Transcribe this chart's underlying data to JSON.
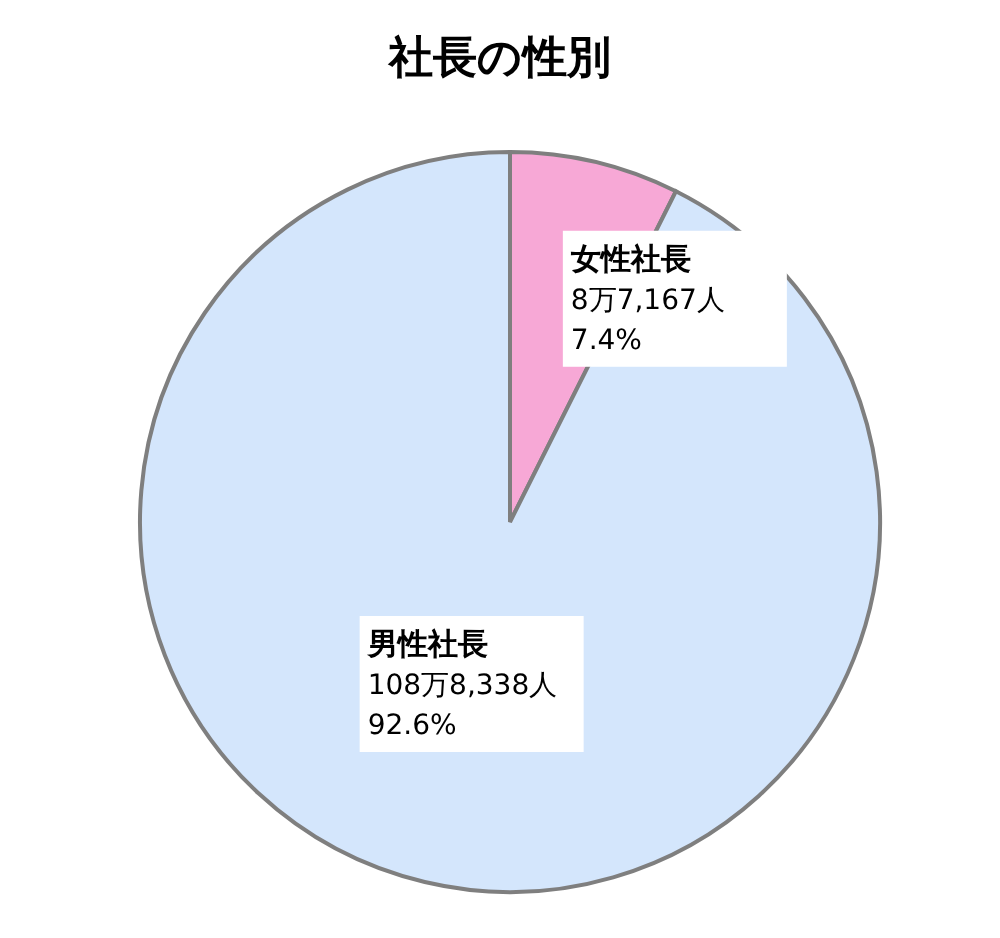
{
  "chart_data": {
    "type": "pie",
    "title": "社長の性別",
    "categories": [
      "女性社長",
      "男性社長"
    ],
    "values": [
      7.4,
      92.6
    ],
    "value_labels": [
      "8万7,167人\n7.4%",
      "108万8,338人\n92.6%"
    ],
    "colors": [
      "#f7a8d6",
      "#d4e6fc"
    ]
  }
}
